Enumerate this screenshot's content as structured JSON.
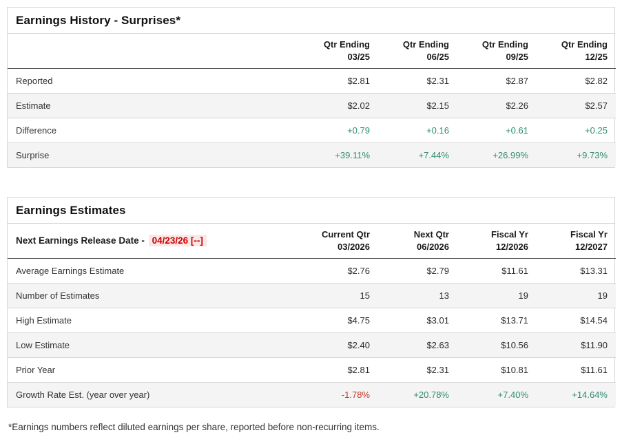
{
  "colors": {
    "positive": "#2e8c72",
    "negative": "#c0392b",
    "alert_red": "#cc0000",
    "alert_bg": "#fbe7e7",
    "row_alt_bg": "#f4f4f4"
  },
  "surprises_table": {
    "title": "Earnings History - Surprises*",
    "columns": [
      {
        "line1": "Qtr Ending",
        "line2": "03/25"
      },
      {
        "line1": "Qtr Ending",
        "line2": "06/25"
      },
      {
        "line1": "Qtr Ending",
        "line2": "09/25"
      },
      {
        "line1": "Qtr Ending",
        "line2": "12/25"
      }
    ],
    "rows": [
      {
        "label": "Reported",
        "values": [
          "$2.81",
          "$2.31",
          "$2.87",
          "$2.82"
        ],
        "tone": "neutral"
      },
      {
        "label": "Estimate",
        "values": [
          "$2.02",
          "$2.15",
          "$2.26",
          "$2.57"
        ],
        "tone": "neutral"
      },
      {
        "label": "Difference",
        "values": [
          "+0.79",
          "+0.16",
          "+0.61",
          "+0.25"
        ],
        "tone": "positive"
      },
      {
        "label": "Surprise",
        "values": [
          "+39.11%",
          "+7.44%",
          "+26.99%",
          "+9.73%"
        ],
        "tone": "positive"
      }
    ]
  },
  "estimates_table": {
    "title": "Earnings Estimates",
    "release_label": "Next Earnings Release Date - ",
    "release_date": "04/23/26 [--]",
    "columns": [
      {
        "line1": "Current Qtr",
        "line2": "03/2026"
      },
      {
        "line1": "Next Qtr",
        "line2": "06/2026"
      },
      {
        "line1": "Fiscal Yr",
        "line2": "12/2026"
      },
      {
        "line1": "Fiscal Yr",
        "line2": "12/2027"
      }
    ],
    "rows": [
      {
        "label": "Average Earnings Estimate",
        "values": [
          "$2.76",
          "$2.79",
          "$11.61",
          "$13.31"
        ],
        "tone": "neutral"
      },
      {
        "label": "Number of Estimates",
        "values": [
          "15",
          "13",
          "19",
          "19"
        ],
        "tone": "neutral"
      },
      {
        "label": "High Estimate",
        "values": [
          "$4.75",
          "$3.01",
          "$13.71",
          "$14.54"
        ],
        "tone": "neutral"
      },
      {
        "label": "Low Estimate",
        "values": [
          "$2.40",
          "$2.63",
          "$10.56",
          "$11.90"
        ],
        "tone": "neutral"
      },
      {
        "label": "Prior Year",
        "values": [
          "$2.81",
          "$2.31",
          "$10.81",
          "$11.61"
        ],
        "tone": "neutral"
      },
      {
        "label": "Growth Rate Est. (year over year)",
        "values": [
          "-1.78%",
          "+20.78%",
          "+7.40%",
          "+14.64%"
        ],
        "tone": "neutral",
        "value_tones": [
          "negative",
          "positive",
          "positive",
          "positive"
        ]
      }
    ]
  },
  "page": {
    "footnote": "*Earnings numbers reflect diluted earnings per share, reported before non-recurring items."
  }
}
